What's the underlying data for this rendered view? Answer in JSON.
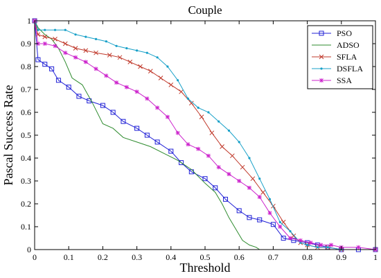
{
  "chart_data": {
    "type": "line",
    "title": "Couple",
    "xlabel": "Threshold",
    "ylabel": "Pascal Success Rate",
    "xlim": [
      0,
      1
    ],
    "ylim": [
      0,
      1
    ],
    "xticks": [
      "0",
      "0.1",
      "0.2",
      "0.3",
      "0.4",
      "0.5",
      "0.6",
      "0.7",
      "0.8",
      "0.9",
      "1"
    ],
    "yticks": [
      "0",
      "0.1",
      "0.2",
      "0.3",
      "0.4",
      "0.5",
      "0.6",
      "0.7",
      "0.8",
      "0.9",
      "1"
    ],
    "grid": false,
    "legend_position": "top-right",
    "series": [
      {
        "name": "PSO",
        "color": "#1f1fd6",
        "marker": "square",
        "x": [
          0,
          0.01,
          0.03,
          0.05,
          0.07,
          0.1,
          0.13,
          0.16,
          0.2,
          0.23,
          0.26,
          0.3,
          0.33,
          0.36,
          0.4,
          0.43,
          0.46,
          0.5,
          0.53,
          0.56,
          0.6,
          0.63,
          0.66,
          0.7,
          0.73,
          0.76,
          0.8,
          0.83,
          0.86,
          0.9,
          0.95,
          1.0
        ],
        "y": [
          1.0,
          0.83,
          0.81,
          0.79,
          0.74,
          0.71,
          0.67,
          0.65,
          0.63,
          0.6,
          0.56,
          0.53,
          0.5,
          0.47,
          0.43,
          0.38,
          0.34,
          0.31,
          0.27,
          0.22,
          0.17,
          0.14,
          0.13,
          0.11,
          0.05,
          0.04,
          0.03,
          0.02,
          0.01,
          0.0,
          0.0,
          0.0
        ]
      },
      {
        "name": "ADSO",
        "color": "#2e8b2e",
        "marker": "none",
        "x": [
          0,
          0.01,
          0.03,
          0.05,
          0.07,
          0.09,
          0.11,
          0.14,
          0.17,
          0.2,
          0.23,
          0.26,
          0.3,
          0.34,
          0.38,
          0.42,
          0.46,
          0.5,
          0.53,
          0.55,
          0.57,
          0.59,
          0.61,
          0.63,
          0.65,
          0.66
        ],
        "y": [
          1.0,
          0.97,
          0.94,
          0.92,
          0.88,
          0.82,
          0.75,
          0.72,
          0.64,
          0.55,
          0.53,
          0.49,
          0.47,
          0.45,
          0.42,
          0.39,
          0.35,
          0.29,
          0.25,
          0.2,
          0.14,
          0.09,
          0.04,
          0.02,
          0.01,
          0.0
        ]
      },
      {
        "name": "SFLA",
        "color": "#c0392b",
        "marker": "x",
        "x": [
          0,
          0.01,
          0.03,
          0.06,
          0.09,
          0.12,
          0.15,
          0.18,
          0.22,
          0.25,
          0.28,
          0.31,
          0.34,
          0.37,
          0.4,
          0.43,
          0.46,
          0.49,
          0.52,
          0.55,
          0.58,
          0.61,
          0.64,
          0.67,
          0.7,
          0.73,
          0.76,
          0.78,
          0.8,
          0.83,
          0.86,
          0.9,
          1.0
        ],
        "y": [
          1.0,
          0.94,
          0.93,
          0.92,
          0.9,
          0.88,
          0.87,
          0.86,
          0.85,
          0.84,
          0.82,
          0.8,
          0.78,
          0.75,
          0.72,
          0.69,
          0.64,
          0.58,
          0.51,
          0.45,
          0.41,
          0.36,
          0.31,
          0.25,
          0.19,
          0.12,
          0.06,
          0.03,
          0.02,
          0.01,
          0.01,
          0.0,
          0.0
        ]
      },
      {
        "name": "DSFLA",
        "color": "#17a0c8",
        "marker": "dot",
        "x": [
          0,
          0.01,
          0.03,
          0.06,
          0.09,
          0.12,
          0.15,
          0.18,
          0.21,
          0.24,
          0.27,
          0.3,
          0.33,
          0.36,
          0.39,
          0.42,
          0.45,
          0.48,
          0.51,
          0.54,
          0.57,
          0.6,
          0.63,
          0.66,
          0.69,
          0.72,
          0.75,
          0.78,
          0.8,
          0.83,
          0.86,
          0.9,
          1.0
        ],
        "y": [
          1.0,
          0.96,
          0.96,
          0.96,
          0.96,
          0.94,
          0.93,
          0.92,
          0.91,
          0.89,
          0.88,
          0.87,
          0.86,
          0.84,
          0.8,
          0.74,
          0.66,
          0.62,
          0.6,
          0.56,
          0.52,
          0.47,
          0.4,
          0.31,
          0.22,
          0.12,
          0.08,
          0.03,
          0.02,
          0.01,
          0.01,
          0.0,
          0.0
        ]
      },
      {
        "name": "SSA",
        "color": "#cc22cc",
        "marker": "star",
        "x": [
          0,
          0.01,
          0.03,
          0.06,
          0.09,
          0.12,
          0.15,
          0.18,
          0.21,
          0.24,
          0.27,
          0.3,
          0.33,
          0.36,
          0.39,
          0.42,
          0.45,
          0.48,
          0.51,
          0.54,
          0.57,
          0.6,
          0.63,
          0.66,
          0.69,
          0.72,
          0.75,
          0.78,
          0.81,
          0.84,
          0.87,
          0.9,
          0.95,
          1.0
        ],
        "y": [
          1.0,
          0.9,
          0.9,
          0.89,
          0.86,
          0.84,
          0.82,
          0.79,
          0.76,
          0.73,
          0.71,
          0.69,
          0.66,
          0.62,
          0.58,
          0.51,
          0.46,
          0.44,
          0.41,
          0.36,
          0.33,
          0.3,
          0.27,
          0.23,
          0.16,
          0.1,
          0.05,
          0.04,
          0.03,
          0.02,
          0.02,
          0.01,
          0.01,
          0.0
        ]
      }
    ]
  }
}
